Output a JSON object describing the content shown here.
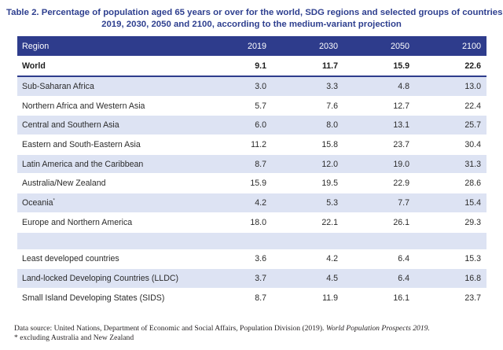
{
  "title_line1": "Table 2. Percentage of population aged 65 years or over for the world, SDG regions and selected groups of countries,",
  "title_line2": "2019, 2030, 2050 and 2100, according to the medium-variant projection",
  "columns": [
    "Region",
    "2019",
    "2030",
    "2050",
    "2100"
  ],
  "world": {
    "region": "World",
    "values": [
      "9.1",
      "11.7",
      "15.9",
      "22.6"
    ]
  },
  "regions": [
    {
      "region": "Sub-Saharan Africa",
      "sup": "",
      "values": [
        "3.0",
        "3.3",
        "4.8",
        "13.0"
      ]
    },
    {
      "region": "Northern Africa and Western Asia",
      "sup": "",
      "values": [
        "5.7",
        "7.6",
        "12.7",
        "22.4"
      ]
    },
    {
      "region": "Central and Southern Asia",
      "sup": "",
      "values": [
        "6.0",
        "8.0",
        "13.1",
        "25.7"
      ]
    },
    {
      "region": "Eastern and South-Eastern Asia",
      "sup": "",
      "values": [
        "11.2",
        "15.8",
        "23.7",
        "30.4"
      ]
    },
    {
      "region": "Latin America and the Caribbean",
      "sup": "",
      "values": [
        "8.7",
        "12.0",
        "19.0",
        "31.3"
      ]
    },
    {
      "region": "Australia/New Zealand",
      "sup": "",
      "values": [
        "15.9",
        "19.5",
        "22.9",
        "28.6"
      ]
    },
    {
      "region": "Oceania",
      "sup": "*",
      "values": [
        "4.2",
        "5.3",
        "7.7",
        "15.4"
      ]
    },
    {
      "region": "Europe and Northern America",
      "sup": "",
      "values": [
        "18.0",
        "22.1",
        "26.1",
        "29.3"
      ]
    }
  ],
  "groups": [
    {
      "region": "Least developed countries",
      "values": [
        "3.6",
        "4.2",
        "6.4",
        "15.3"
      ]
    },
    {
      "region": "Land-locked Developing Countries (LLDC)",
      "values": [
        "3.7",
        "4.5",
        "6.4",
        "16.8"
      ]
    },
    {
      "region": "Small Island Developing States (SIDS)",
      "values": [
        "8.7",
        "11.9",
        "16.1",
        "23.7"
      ]
    }
  ],
  "source_prefix": "Data source: United Nations, Department of Economic and Social Affairs, Population Division (2019). ",
  "source_title": "World Population Prospects 2019.",
  "footnote": "* excluding Australia and New Zealand"
}
